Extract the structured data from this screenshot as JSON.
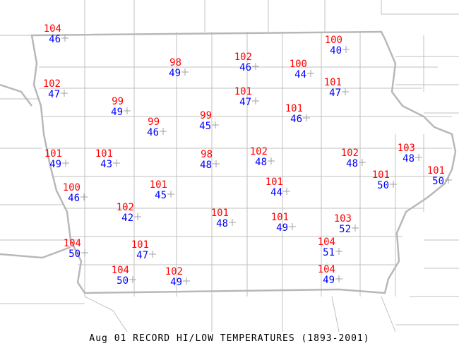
{
  "title": "Aug 01 RECORD HI/LOW TEMPERATURES (1893-2001)",
  "colors": {
    "high": "#ff0000",
    "low": "#0000ff",
    "boundaries": "#c0c0c0",
    "marker": "#a0a0a0"
  },
  "stations": [
    {
      "hi": "104",
      "lo": "46"
    },
    {
      "hi": "98",
      "lo": "49"
    },
    {
      "hi": "102",
      "lo": "46"
    },
    {
      "hi": "100",
      "lo": "40"
    },
    {
      "hi": "100",
      "lo": "44"
    },
    {
      "hi": "102",
      "lo": "47"
    },
    {
      "hi": "101",
      "lo": "47"
    },
    {
      "hi": "101",
      "lo": "47"
    },
    {
      "hi": "99",
      "lo": "49"
    },
    {
      "hi": "101",
      "lo": "46"
    },
    {
      "hi": "99",
      "lo": "46"
    },
    {
      "hi": "99",
      "lo": "45"
    },
    {
      "hi": "101",
      "lo": "49"
    },
    {
      "hi": "101",
      "lo": "43"
    },
    {
      "hi": "98",
      "lo": "48"
    },
    {
      "hi": "102",
      "lo": "48"
    },
    {
      "hi": "102",
      "lo": "48"
    },
    {
      "hi": "103",
      "lo": "48"
    },
    {
      "hi": "101",
      "lo": "50"
    },
    {
      "hi": "101",
      "lo": "50"
    },
    {
      "hi": "100",
      "lo": "46"
    },
    {
      "hi": "101",
      "lo": "45"
    },
    {
      "hi": "101",
      "lo": "44"
    },
    {
      "hi": "102",
      "lo": "42"
    },
    {
      "hi": "101",
      "lo": "48"
    },
    {
      "hi": "101",
      "lo": "49"
    },
    {
      "hi": "103",
      "lo": "52"
    },
    {
      "hi": "104",
      "lo": "50"
    },
    {
      "hi": "101",
      "lo": "47"
    },
    {
      "hi": "104",
      "lo": "51"
    },
    {
      "hi": "104",
      "lo": "50"
    },
    {
      "hi": "102",
      "lo": "49"
    },
    {
      "hi": "104",
      "lo": "49"
    }
  ]
}
